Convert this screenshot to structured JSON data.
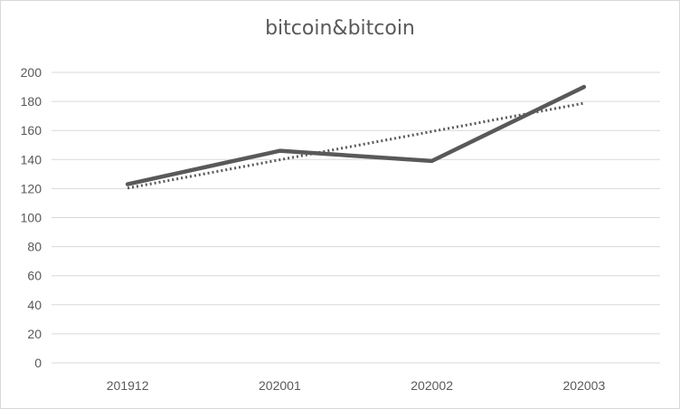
{
  "chart_data": {
    "type": "line",
    "title": "bitcoin&bitcoin",
    "xlabel": "",
    "ylabel": "",
    "categories": [
      "201912",
      "202001",
      "202002",
      "202003"
    ],
    "series": [
      {
        "values": [
          123,
          146,
          139,
          190
        ],
        "color": "#595959",
        "style": "solid"
      }
    ],
    "trendline": {
      "type": "linear",
      "values": [
        120.3,
        139.8,
        159.3,
        178.8
      ],
      "color": "#595959",
      "style": "dotted"
    },
    "ylim": [
      0,
      200
    ],
    "yticks": [
      0,
      20,
      40,
      60,
      80,
      100,
      120,
      140,
      160,
      180,
      200
    ],
    "grid": true,
    "legend": "none"
  }
}
